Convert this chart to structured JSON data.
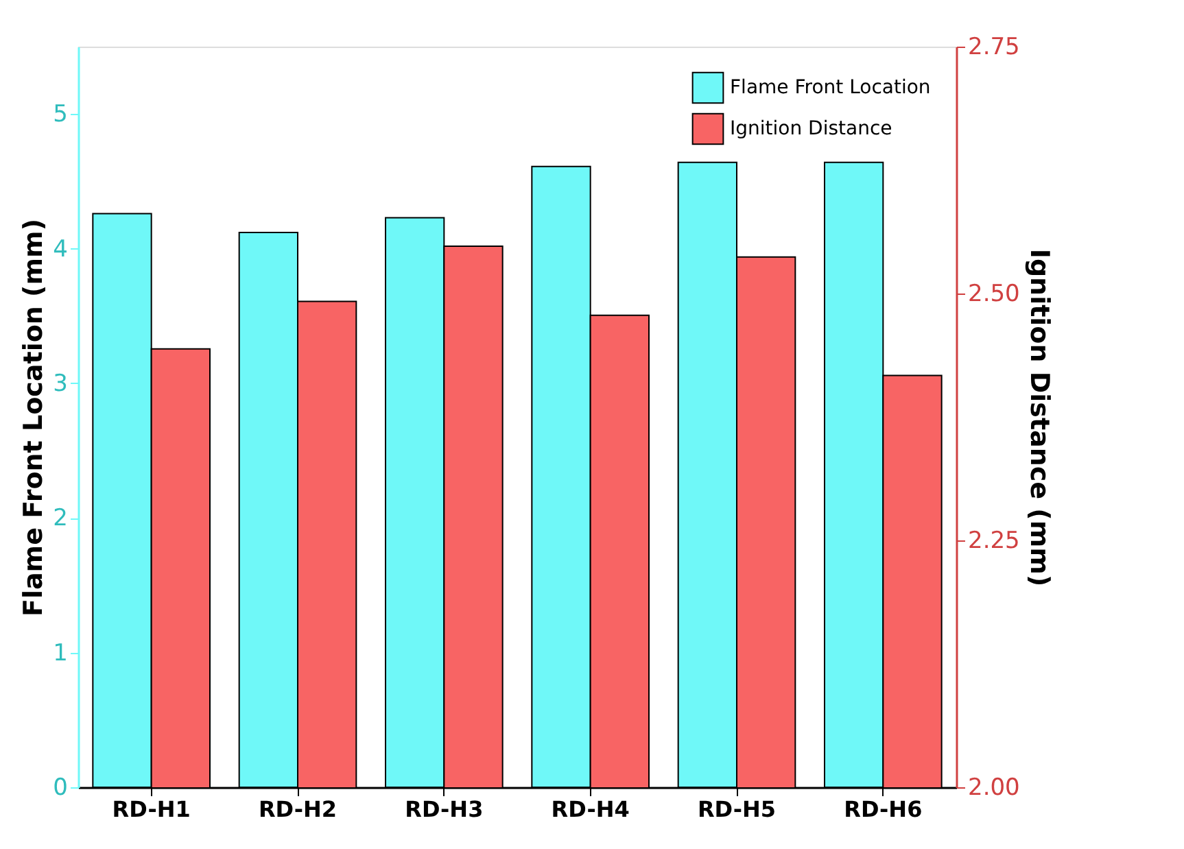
{
  "chart_data": {
    "type": "bar",
    "categories": [
      "RD-H1",
      "RD-H2",
      "RD-H3",
      "RD-H4",
      "RD-H5",
      "RD-H6"
    ],
    "ylabel": "Flame Front Location (mm)",
    "y2label": "Ignition Distance (mm)",
    "series": [
      {
        "name": "Flame Front Location",
        "color": "#6ff8f8",
        "values": [
          4.26,
          4.12,
          4.23,
          4.61,
          4.64,
          4.64
        ]
      },
      {
        "name": "Ignition Distance",
        "color": "#f86464",
        "axis": "y2",
        "values": [
          2.444,
          2.492,
          2.548,
          2.478,
          2.537,
          2.417
        ]
      }
    ],
    "ylim": [
      0,
      5.5
    ],
    "yticks": [
      0,
      1,
      2,
      3,
      4,
      5
    ],
    "y2lim": [
      2,
      2.75
    ],
    "y2ticks": [
      {
        "value": 2,
        "label": "2.00"
      },
      {
        "value": 2.25,
        "label": "2.25"
      },
      {
        "value": 2.5,
        "label": "2.50"
      },
      {
        "value": 2.75,
        "label": "2.75"
      }
    ],
    "grid": false,
    "legend": "top right"
  }
}
